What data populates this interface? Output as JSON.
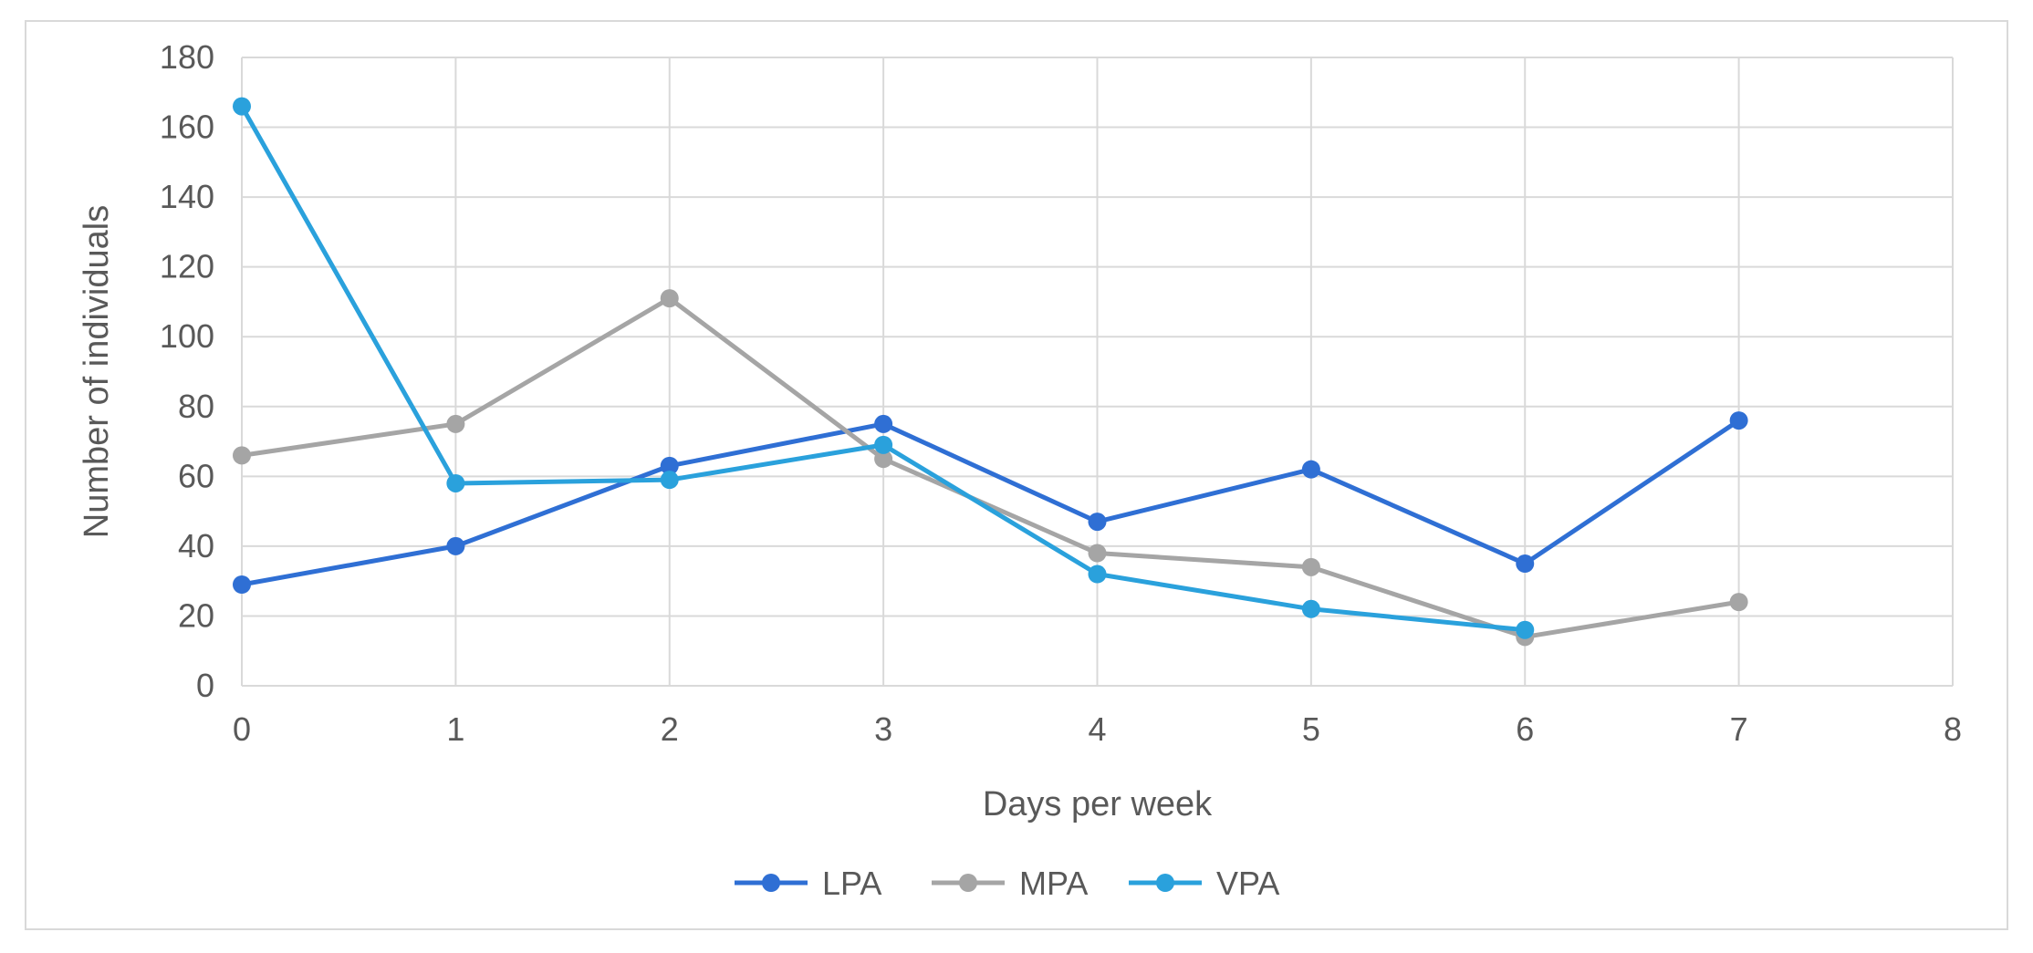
{
  "chart_data": {
    "type": "line",
    "title": "",
    "xlabel": "Days per week",
    "ylabel": "Number of individuals",
    "xlim": [
      0,
      8
    ],
    "ylim": [
      0,
      180
    ],
    "x_ticks": [
      0,
      1,
      2,
      3,
      4,
      5,
      6,
      7,
      8
    ],
    "y_ticks": [
      0,
      20,
      40,
      60,
      80,
      100,
      120,
      140,
      160,
      180
    ],
    "grid": true,
    "legend_position": "bottom",
    "series": [
      {
        "name": "LPA",
        "color": "#2f6fd4",
        "x": [
          0,
          1,
          2,
          3,
          4,
          5,
          6,
          7
        ],
        "values": [
          29,
          40,
          63,
          75,
          47,
          62,
          35,
          76
        ]
      },
      {
        "name": "MPA",
        "color": "#a5a5a5",
        "x": [
          0,
          1,
          2,
          3,
          4,
          5,
          6,
          7
        ],
        "values": [
          66,
          75,
          111,
          65,
          38,
          34,
          14,
          24
        ]
      },
      {
        "name": "VPA",
        "color": "#2aa1dc",
        "x": [
          0,
          1,
          2,
          3,
          4,
          5,
          6
        ],
        "values": [
          166,
          58,
          59,
          69,
          32,
          22,
          16
        ]
      }
    ]
  }
}
